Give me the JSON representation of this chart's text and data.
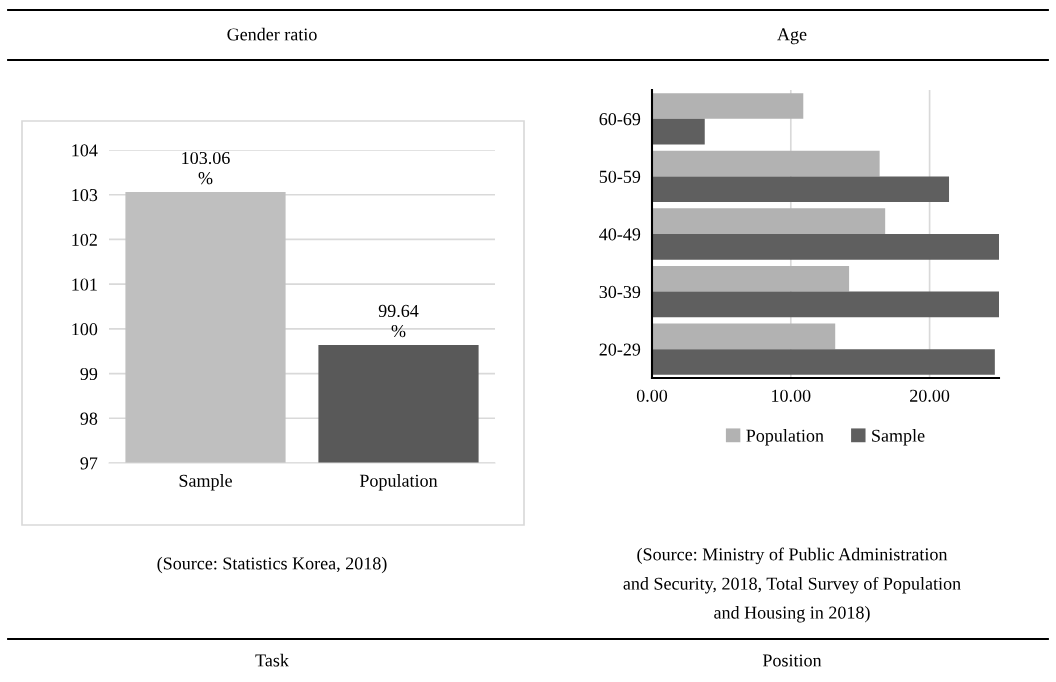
{
  "chart_data": [
    {
      "type": "bar",
      "title": "Gender ratio",
      "categories": [
        "Sample",
        "Population"
      ],
      "values": [
        103.06,
        99.64
      ],
      "colors": [
        "#bfbfbf",
        "#595959"
      ],
      "value_labels": [
        "103.06\n%",
        "99.64\n%"
      ],
      "ylim": [
        97,
        104
      ],
      "yticks": [
        97,
        98,
        99,
        100,
        101,
        102,
        103,
        104
      ],
      "grid": "y",
      "legend": false,
      "annotations": [
        "(Source: Statistics Korea, 2018)",
        "Task"
      ]
    },
    {
      "type": "bar",
      "title": "Age",
      "orientation": "horizontal",
      "categories": [
        "60-69",
        "50-59",
        "40-49",
        "30-39",
        "20-29"
      ],
      "series": [
        {
          "name": "Population",
          "color": "#b2b2b2",
          "values": [
            10.9,
            16.4,
            16.8,
            14.2,
            13.2
          ]
        },
        {
          "name": "Sample",
          "color": "#5f5f5f",
          "values": [
            3.8,
            21.4,
            25.0,
            25.0,
            24.7
          ]
        }
      ],
      "xlim": [
        0,
        25
      ],
      "xticks": [
        {
          "value": 0,
          "label": "0.00"
        },
        {
          "value": 10,
          "label": "10.00"
        },
        {
          "value": 20,
          "label": "20.00"
        }
      ],
      "grid": "x",
      "legend": "bottom",
      "annotations": [
        "(Source: Ministry of Public Administration\nand Security, 2018, Total Survey of Population\nand Housing in 2018)",
        "Position"
      ]
    }
  ]
}
